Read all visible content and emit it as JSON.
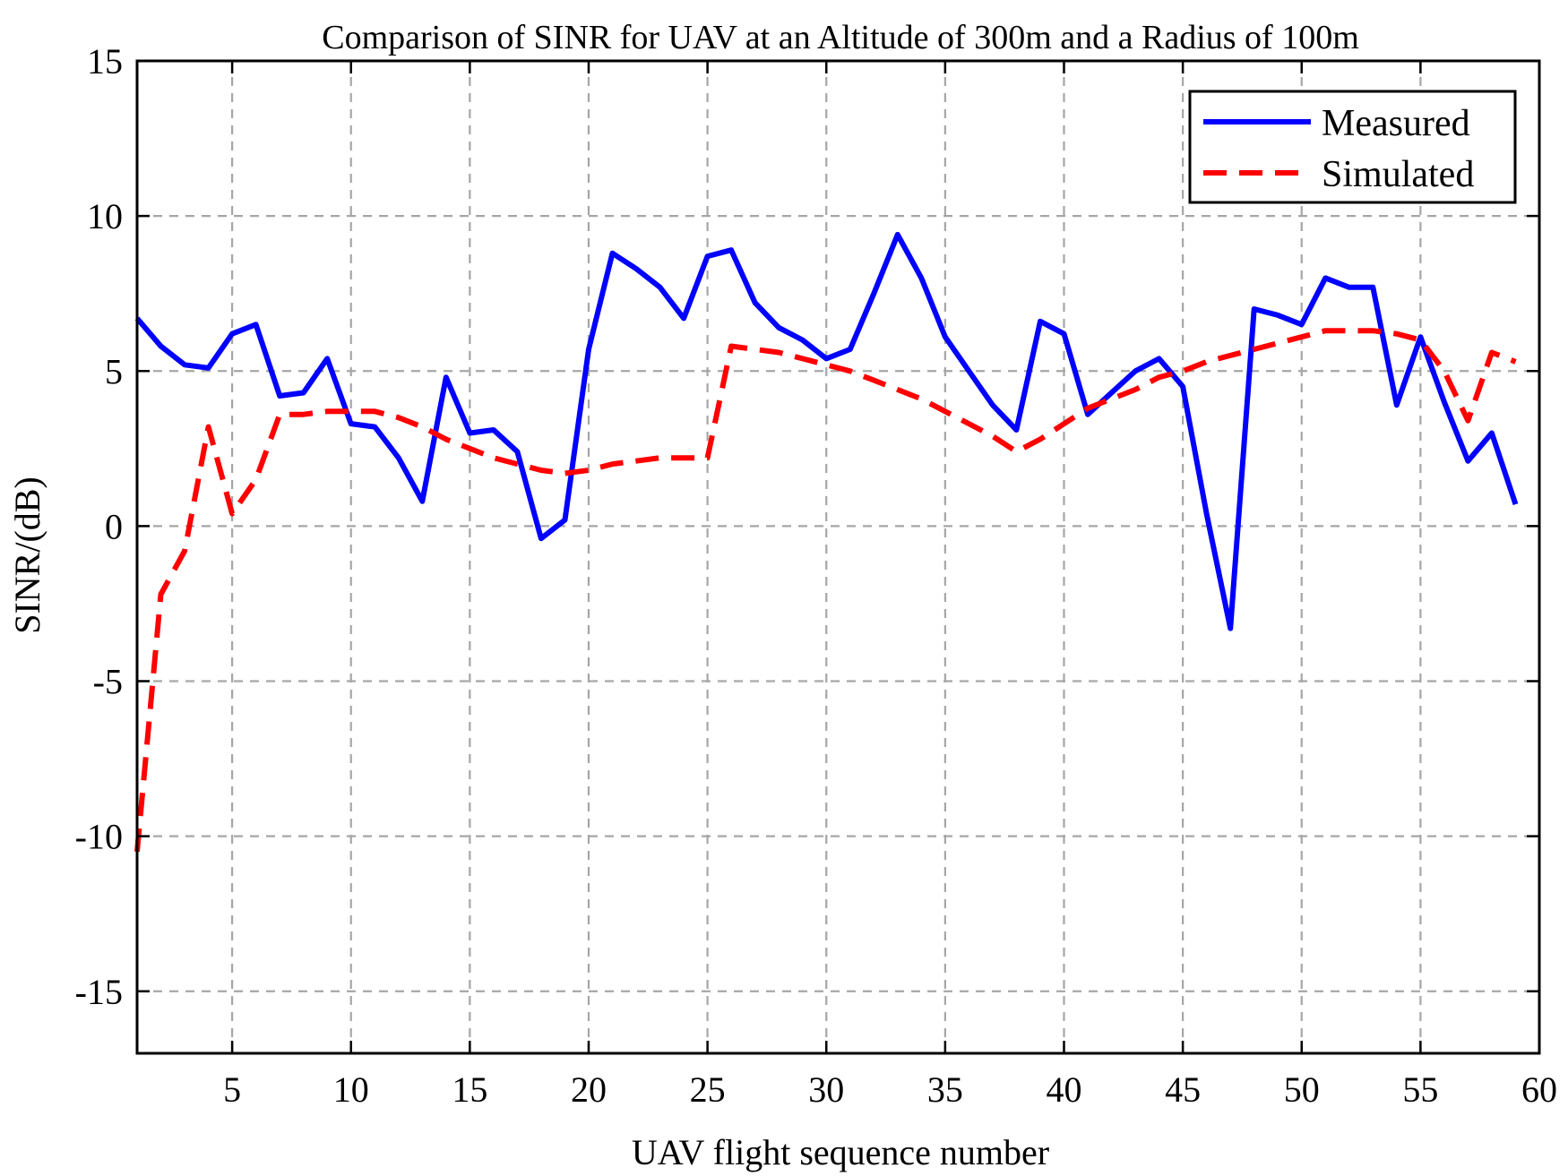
{
  "chart_data": {
    "type": "line",
    "title": "Comparison of SINR for UAV at an Altitude of 300m and a Radius of 100m",
    "xlabel": "UAV flight sequence number",
    "ylabel": "SINR/(dB)",
    "xlim": [
      1,
      60
    ],
    "ylim": [
      -17,
      15
    ],
    "xticks": [
      5,
      10,
      15,
      20,
      25,
      30,
      35,
      40,
      45,
      50,
      55,
      60
    ],
    "yticks": [
      -15,
      -10,
      -5,
      0,
      5,
      10,
      15
    ],
    "xtick_labels": [
      "5",
      "10",
      "15",
      "20",
      "25",
      "30",
      "35",
      "40",
      "45",
      "50",
      "55",
      "60"
    ],
    "ytick_labels": [
      "-15",
      "-10",
      "-5",
      "0",
      "5",
      "10",
      "15"
    ],
    "grid": true,
    "legend_position": "top-right",
    "series": [
      {
        "name": "Measured",
        "color": "#0000ff",
        "style": "solid",
        "x": [
          1,
          2,
          3,
          4,
          5,
          6,
          7,
          8,
          9,
          10,
          11,
          12,
          13,
          14,
          15,
          16,
          17,
          18,
          19,
          20,
          21,
          22,
          23,
          24,
          25,
          26,
          27,
          28,
          29,
          30,
          31,
          32,
          33,
          34,
          35,
          36,
          37,
          38,
          39,
          40,
          41,
          42,
          43,
          44,
          45,
          46,
          47,
          48,
          49,
          50,
          51,
          52,
          53,
          54,
          55,
          56,
          57,
          58,
          59
        ],
        "y": [
          6.7,
          5.8,
          5.2,
          5.1,
          6.2,
          6.5,
          4.2,
          4.3,
          5.4,
          3.3,
          3.2,
          2.2,
          0.8,
          4.8,
          3.0,
          3.1,
          2.4,
          -0.4,
          0.2,
          5.7,
          8.8,
          8.3,
          7.7,
          6.7,
          8.7,
          8.9,
          7.2,
          6.4,
          6.0,
          5.4,
          5.7,
          7.5,
          9.4,
          8.0,
          6.1,
          5.0,
          3.9,
          3.1,
          6.6,
          6.2,
          3.6,
          4.3,
          5.0,
          5.4,
          4.5,
          0.4,
          -3.3,
          7.0,
          6.8,
          6.5,
          8.0,
          7.7,
          7.7,
          3.9,
          6.1,
          4.0,
          2.1,
          3.0,
          0.7
        ]
      },
      {
        "name": "Simulated",
        "color": "#ff0000",
        "style": "dashed",
        "x": [
          1,
          2,
          3,
          4,
          5,
          6,
          7,
          8,
          9,
          10,
          11,
          12,
          13,
          14,
          15,
          16,
          17,
          18,
          19,
          20,
          21,
          22,
          23,
          24,
          25,
          26,
          27,
          28,
          29,
          30,
          31,
          32,
          33,
          34,
          35,
          36,
          37,
          38,
          39,
          40,
          41,
          42,
          43,
          44,
          45,
          46,
          47,
          48,
          49,
          50,
          51,
          52,
          53,
          54,
          55,
          56,
          57,
          58,
          59
        ],
        "y": [
          -10.5,
          -2.2,
          -0.8,
          3.2,
          0.4,
          1.5,
          3.6,
          3.6,
          3.7,
          3.7,
          3.7,
          3.5,
          3.2,
          2.8,
          2.5,
          2.2,
          2.0,
          1.8,
          1.7,
          1.8,
          2.0,
          2.1,
          2.2,
          2.2,
          2.2,
          5.8,
          5.7,
          5.6,
          5.4,
          5.2,
          5.0,
          4.7,
          4.4,
          4.1,
          3.7,
          3.3,
          2.9,
          2.4,
          2.8,
          3.3,
          3.8,
          4.1,
          4.4,
          4.8,
          5.0,
          5.3,
          5.5,
          5.7,
          5.9,
          6.1,
          6.3,
          6.3,
          6.3,
          6.2,
          6.0,
          5.0,
          3.4,
          5.6,
          5.3
        ]
      }
    ]
  }
}
